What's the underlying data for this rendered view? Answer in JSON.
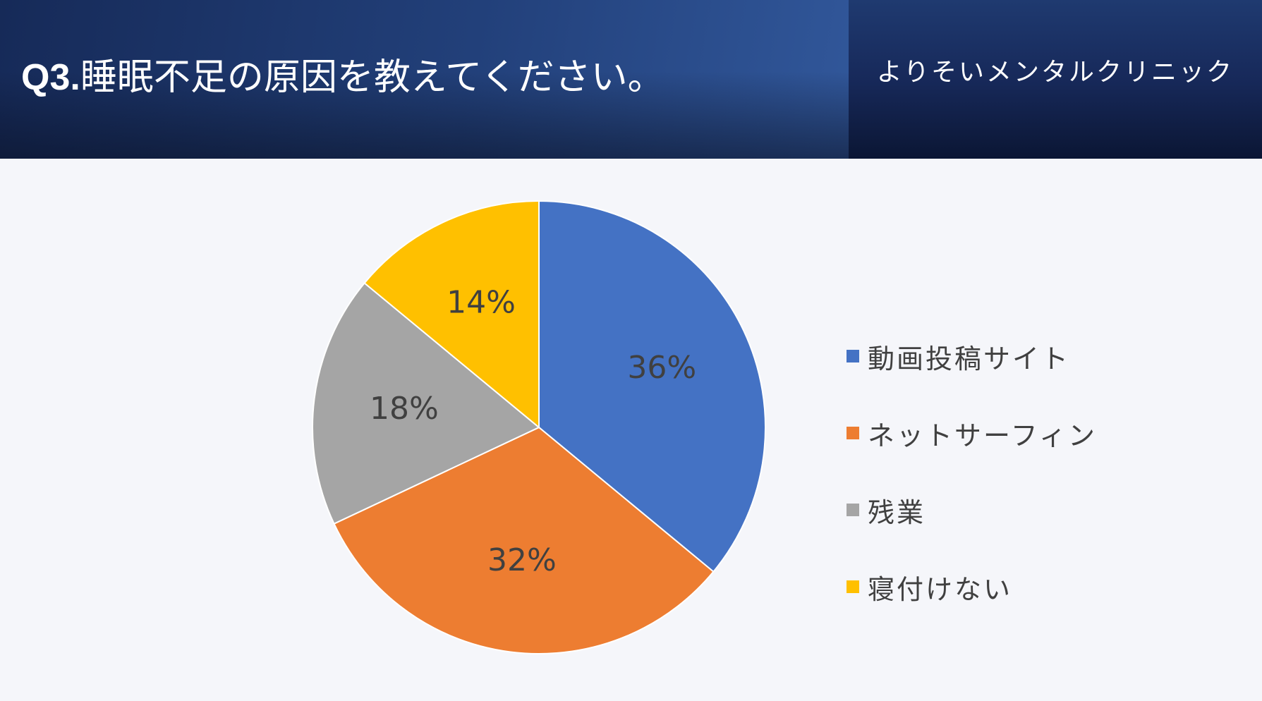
{
  "header": {
    "title_prefix": "Q3.",
    "title_text": "睡眠不足の原因を教えてください。",
    "clinic_name": "よりそいメンタルクリニック"
  },
  "colors": {
    "series": [
      "#4472c4",
      "#ed7d31",
      "#a5a5a5",
      "#ffc000"
    ],
    "label_text": "#404040"
  },
  "chart_data": {
    "type": "pie",
    "categories": [
      "動画投稿サイト",
      "ネットサーフィン",
      "残業",
      "寝付けない"
    ],
    "values": [
      36,
      32,
      18,
      14
    ],
    "labels": [
      "36%",
      "32%",
      "18%",
      "14%"
    ],
    "legend_position": "right"
  }
}
